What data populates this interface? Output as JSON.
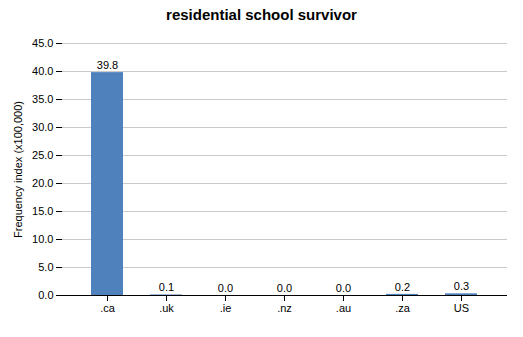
{
  "chart_data": {
    "type": "bar",
    "title": "residential school survivor",
    "categories": [
      ".ca",
      ".uk",
      ".ie",
      ".nz",
      ".au",
      ".za",
      "US"
    ],
    "values": [
      39.8,
      0.1,
      0.0,
      0.0,
      0.0,
      0.2,
      0.3
    ],
    "value_labels": [
      "39.8",
      "0.1",
      "0.0",
      "0.0",
      "0.0",
      "0.2",
      "0.3"
    ],
    "data_labels": true,
    "color": "#4f81bd",
    "ylabel": "Frequency index (x100,000)",
    "ylim": [
      0,
      45.0
    ],
    "yticks": [
      {
        "value": 0.0,
        "label": "0.0"
      },
      {
        "value": 5.0,
        "label": "5.0"
      },
      {
        "value": 10.0,
        "label": "10.0"
      },
      {
        "value": 15.0,
        "label": "15.0"
      },
      {
        "value": 20.0,
        "label": "20.0"
      },
      {
        "value": 25.0,
        "label": "25.0"
      },
      {
        "value": 30.0,
        "label": "30.0"
      },
      {
        "value": 35.0,
        "label": "35.0"
      },
      {
        "value": 40.0,
        "label": "40.0"
      },
      {
        "value": 45.0,
        "label": "45.0"
      }
    ],
    "grid": true
  }
}
